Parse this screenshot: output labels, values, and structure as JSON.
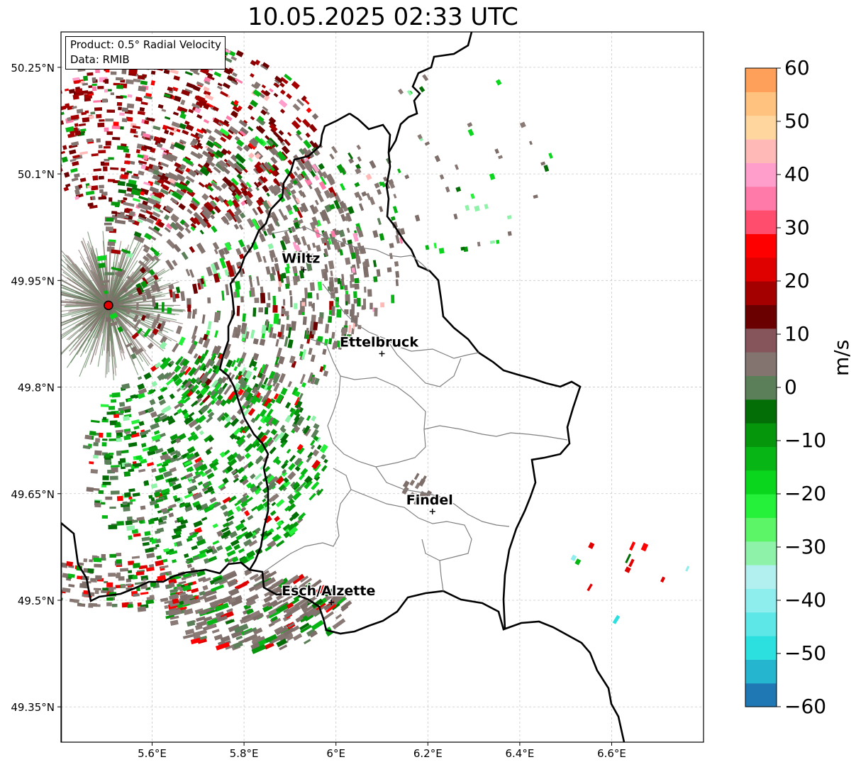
{
  "title": "10.05.2025 02:33 UTC",
  "info": {
    "product": "Product: 0.5° Radial Velocity",
    "data": "Data: RMIB"
  },
  "lat_ticks": [
    "50.25°N",
    "50.1°N",
    "49.95°N",
    "49.8°N",
    "49.65°N",
    "49.5°N",
    "49.35°N"
  ],
  "lon_ticks": [
    "5.6°E",
    "5.8°E",
    "6°E",
    "6.2°E",
    "6.4°E",
    "6.6°E"
  ],
  "cities": [
    {
      "name": "Wiltz",
      "lon": 5.93,
      "lat": 49.965
    },
    {
      "name": "Ettelbruck",
      "lon": 6.1,
      "lat": 49.847
    },
    {
      "name": "Findel",
      "lon": 6.21,
      "lat": 49.625
    },
    {
      "name": "Esch/Alzette",
      "lon": 5.99,
      "lat": 49.497
    }
  ],
  "radar_site": {
    "lon": 5.505,
    "lat": 49.915
  },
  "colorbar": {
    "ticks": [
      "60",
      "50",
      "40",
      "30",
      "20",
      "10",
      "0",
      "−10",
      "−20",
      "−30",
      "−40",
      "−50",
      "−60"
    ],
    "label": "m/s",
    "colors": [
      "#1f77b4",
      "#25b5cf",
      "#2de0e0",
      "#5ee7e7",
      "#8eeeee",
      "#b2f0f0",
      "#8ef2a8",
      "#5df568",
      "#25f03a",
      "#0bd61e",
      "#07b614",
      "#05960c",
      "#036e05",
      "#5b7f58",
      "#84746f",
      "#85555b",
      "#6b0000",
      "#a50000",
      "#df0000",
      "#ff0000",
      "#ff4d6d",
      "#ff7aa8",
      "#ff9dcb",
      "#ffbab8",
      "#ffd79e",
      "#ffc37f",
      "#ffa05a"
    ]
  }
}
